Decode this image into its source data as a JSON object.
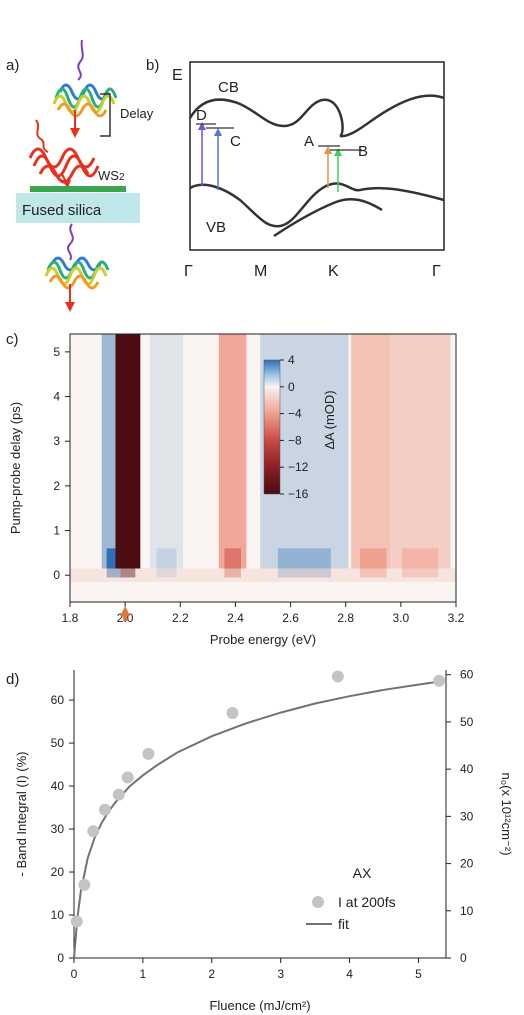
{
  "panel_a": {
    "label": "a)",
    "delay_label": "Delay",
    "sample_label": "WS",
    "sample_sub": "2",
    "substrate_label": "Fused silica"
  },
  "panel_b": {
    "label": "b)",
    "energy_label": "E",
    "cb_label": "CB",
    "vb_label": "VB",
    "transitions": {
      "a": "A",
      "b": "B",
      "c": "C",
      "d": "D"
    },
    "kpoints": [
      "Γ",
      "M",
      "K",
      "Γ"
    ]
  },
  "panel_c": {
    "label": "c)",
    "xlabel": "Probe energy (eV)",
    "ylabel": "Pump-probe delay (ps)",
    "xticks": [
      "1.8",
      "2.0",
      "2.2",
      "2.4",
      "2.6",
      "2.8",
      "3.0",
      "3.2"
    ],
    "yticks": [
      "0",
      "1",
      "2",
      "3",
      "4",
      "5"
    ],
    "colorbar_label": "ΔA (mOD)",
    "colorbar_ticks": [
      "4",
      "0",
      "−4",
      "−8",
      "−12",
      "−16"
    ],
    "pump_marker_energy": 2.0,
    "colors": {
      "positive": "#2e6fb5",
      "negative": "#6b1018",
      "marker": "#e8743b"
    }
  },
  "panel_d": {
    "label": "d)",
    "xlabel": "Fluence (mJ/cm²)",
    "ylabel_left": "- Band Integral (I) (%)",
    "ylabel_right": "n₀(x 10¹²cm⁻²)",
    "xticks": [
      "0",
      "1",
      "2",
      "3",
      "4",
      "5"
    ],
    "yticks_left": [
      "0",
      "10",
      "20",
      "30",
      "40",
      "50",
      "60"
    ],
    "yticks_right": [
      "0",
      "10",
      "20",
      "30",
      "40",
      "50",
      "60"
    ],
    "legend_title": "AX",
    "legend_points": "I at 200fs",
    "legend_fit": "fit"
  },
  "chart_data": [
    {
      "type": "heatmap",
      "xlabel": "Probe energy (eV)",
      "ylabel": "Pump-probe delay (ps)",
      "xlim": [
        1.8,
        3.2
      ],
      "ylim": [
        -0.6,
        5.4
      ],
      "colorbar": {
        "label": "ΔA (mOD)",
        "range": [
          -16,
          4
        ],
        "ticks": [
          4,
          0,
          -4,
          -8,
          -12,
          -16
        ]
      },
      "features": [
        {
          "energy": 1.96,
          "sign": "positive",
          "peak": 4
        },
        {
          "energy": 2.01,
          "sign": "negative",
          "peak": -16
        },
        {
          "energy": 2.15,
          "sign": "positive",
          "peak": 1
        },
        {
          "energy": 2.39,
          "sign": "negative",
          "peak": -6
        },
        {
          "energy": 2.65,
          "sign": "positive",
          "peak": 2
        },
        {
          "energy": 2.9,
          "sign": "negative",
          "peak": -4
        },
        {
          "energy": 3.07,
          "sign": "negative",
          "peak": -3
        }
      ]
    },
    {
      "type": "scatter",
      "xlabel": "Fluence (mJ/cm²)",
      "ylabel": "- Band Integral (I) (%)",
      "y2label": "n₀(x 10¹²cm⁻²)",
      "xlim": [
        0,
        5.4
      ],
      "ylim": [
        0,
        67
      ],
      "y2lim": [
        0,
        61
      ],
      "series": [
        {
          "name": "I at 200fs",
          "x": [
            0.04,
            0.15,
            0.28,
            0.45,
            0.65,
            0.78,
            1.08,
            2.3,
            3.83,
            5.3
          ],
          "y": [
            8.5,
            17,
            29.5,
            34.5,
            38,
            42,
            47.5,
            57,
            65.5,
            64.5
          ]
        },
        {
          "name": "fit",
          "x": [
            0,
            0.05,
            0.1,
            0.2,
            0.3,
            0.4,
            0.5,
            0.6,
            0.8,
            1.0,
            1.2,
            1.5,
            2.0,
            2.5,
            3.0,
            3.5,
            4.0,
            4.5,
            5.0,
            5.3
          ],
          "y": [
            0,
            9.4,
            15.6,
            23.3,
            28,
            31.4,
            34,
            36.2,
            39.8,
            42.5,
            44.8,
            47.8,
            51.6,
            54.6,
            57.1,
            59.2,
            60.9,
            62.4,
            63.6,
            64.3
          ]
        }
      ]
    }
  ]
}
